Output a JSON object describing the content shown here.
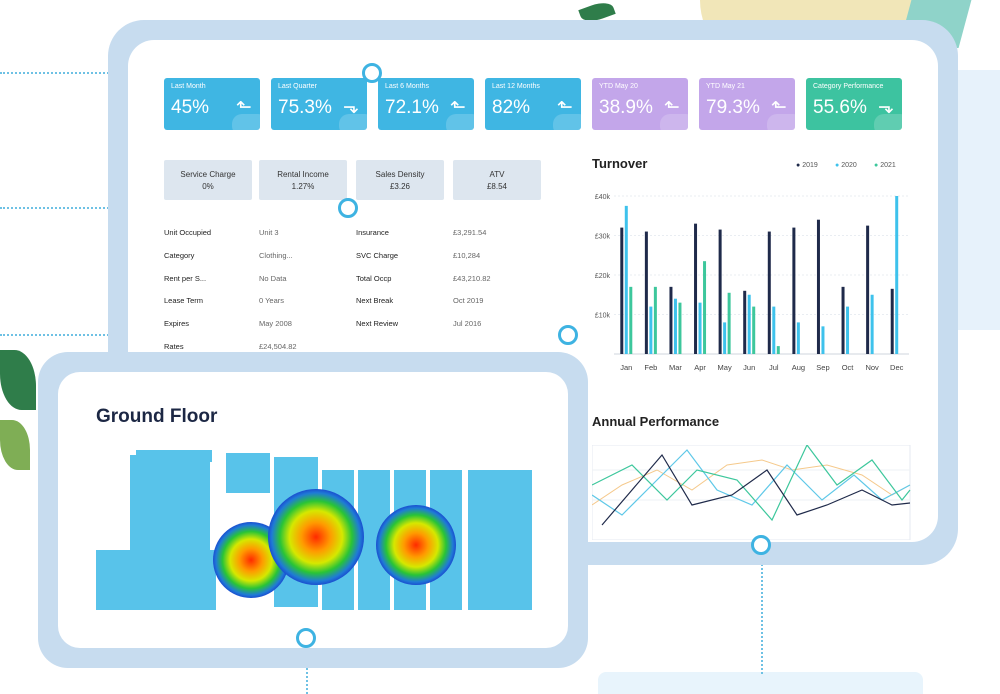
{
  "kpis": [
    {
      "label": "Last Month",
      "value": "45%",
      "color": "#3fb6e3",
      "arrow": "⬑"
    },
    {
      "label": "Last Quarter",
      "value": "75.3%",
      "color": "#3fb6e3",
      "arrow": "⬎"
    },
    {
      "label": "Last 6 Months",
      "value": "72.1%",
      "color": "#3fb6e3",
      "arrow": "⬑"
    },
    {
      "label": "Last 12 Months",
      "value": "82%",
      "color": "#3fb6e3",
      "arrow": "⬑"
    },
    {
      "label": "YTD May 20",
      "value": "38.9%",
      "color": "#c3a6ea",
      "arrow": "⬑"
    },
    {
      "label": "YTD May 21",
      "value": "79.3%",
      "color": "#c3a6ea",
      "arrow": "⬑"
    },
    {
      "label": "Category Performance",
      "value": "55.6%",
      "color": "#3dc3a0",
      "arrow": "⬎"
    }
  ],
  "stats": [
    {
      "title": "Service Charge",
      "value": "0%"
    },
    {
      "title": "Rental Income",
      "value": "1.27%"
    },
    {
      "title": "Sales Density",
      "value": "£3.26"
    },
    {
      "title": "ATV",
      "value": "£8.54"
    }
  ],
  "details_left": [
    {
      "label": "Unit Occupied",
      "value": "Unit 3"
    },
    {
      "label": "Category",
      "value": "Clothing..."
    },
    {
      "label": "Rent per S...",
      "value": "No Data"
    },
    {
      "label": "Lease Term",
      "value": "0 Years"
    },
    {
      "label": "Expires",
      "value": "May 2008"
    },
    {
      "label": "Rates",
      "value": "£24,504.82"
    }
  ],
  "details_right": [
    {
      "label": "Insurance",
      "value": "£3,291.54"
    },
    {
      "label": "SVC Charge",
      "value": "£10,284"
    },
    {
      "label": "Total Occp",
      "value": "£43,210.82"
    },
    {
      "label": "Next Break",
      "value": "Oct 2019"
    },
    {
      "label": "Next Review",
      "value": "Jul 2016"
    }
  ],
  "floor": {
    "title": "Ground Floor"
  },
  "annual": {
    "title": "Annual Performance"
  },
  "chart_data": {
    "type": "bar",
    "title": "Turnover",
    "categories": [
      "Jan",
      "Feb",
      "Mar",
      "Apr",
      "May",
      "Jun",
      "Jul",
      "Aug",
      "Sep",
      "Oct",
      "Nov",
      "Dec"
    ],
    "ytick_labels": [
      "£40k",
      "£30k",
      "£20k",
      "£10k"
    ],
    "ylim": [
      0,
      40000
    ],
    "series": [
      {
        "name": "2019",
        "color": "#1f2a4a",
        "values": [
          32000,
          31000,
          17000,
          33000,
          31500,
          16000,
          31000,
          32000,
          34000,
          17000,
          32500,
          16500
        ]
      },
      {
        "name": "2020",
        "color": "#3ec2ec",
        "values": [
          37500,
          12000,
          14000,
          13000,
          8000,
          15000,
          12000,
          8000,
          7000,
          12000,
          15000,
          40000
        ]
      },
      {
        "name": "2021",
        "color": "#3dc79c",
        "values": [
          17000,
          17000,
          13000,
          23500,
          15500,
          12000,
          2000,
          0,
          0,
          0,
          0,
          0
        ]
      }
    ]
  },
  "colors": {
    "accent": "#3eb3e2",
    "frame": "#c7dcef"
  }
}
